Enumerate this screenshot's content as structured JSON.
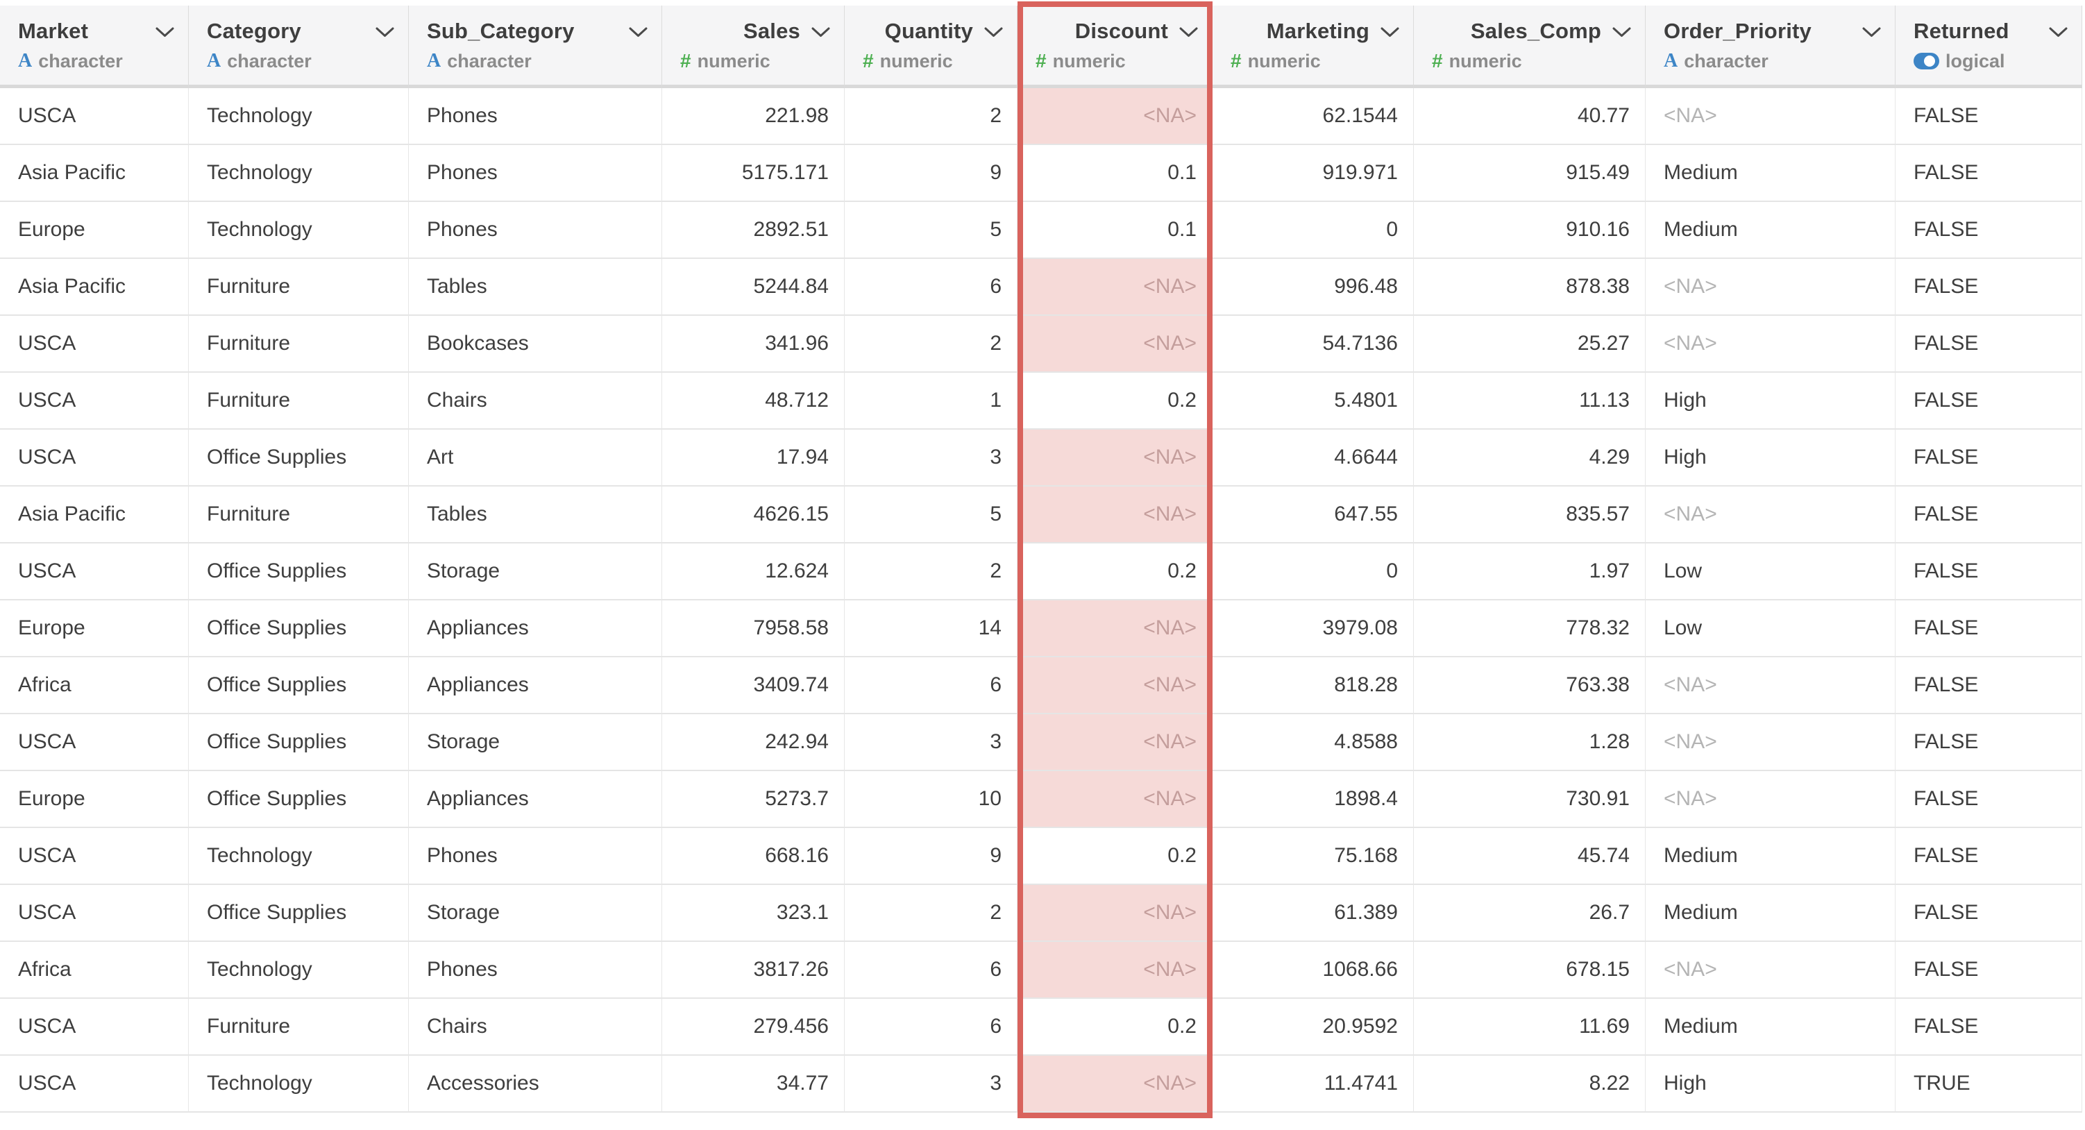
{
  "table": {
    "na_token": "<NA>",
    "type_glyphs": {
      "character": "A",
      "numeric": "#"
    },
    "columns": [
      {
        "name": "Market",
        "type": "character",
        "highlighted": false
      },
      {
        "name": "Category",
        "type": "character",
        "highlighted": false
      },
      {
        "name": "Sub_Category",
        "type": "character",
        "highlighted": false
      },
      {
        "name": "Sales",
        "type": "numeric",
        "highlighted": false
      },
      {
        "name": "Quantity",
        "type": "numeric",
        "highlighted": false
      },
      {
        "name": "Discount",
        "type": "numeric",
        "highlighted": true
      },
      {
        "name": "Marketing",
        "type": "numeric",
        "highlighted": false
      },
      {
        "name": "Sales_Comp",
        "type": "numeric",
        "highlighted": false
      },
      {
        "name": "Order_Priority",
        "type": "character",
        "highlighted": false
      },
      {
        "name": "Returned",
        "type": "logical",
        "highlighted": false
      }
    ],
    "rows": [
      [
        "USCA",
        "Technology",
        "Phones",
        "221.98",
        "2",
        "<NA>",
        "62.1544",
        "40.77",
        "<NA>",
        "FALSE"
      ],
      [
        "Asia Pacific",
        "Technology",
        "Phones",
        "5175.171",
        "9",
        "0.1",
        "919.971",
        "915.49",
        "Medium",
        "FALSE"
      ],
      [
        "Europe",
        "Technology",
        "Phones",
        "2892.51",
        "5",
        "0.1",
        "0",
        "910.16",
        "Medium",
        "FALSE"
      ],
      [
        "Asia Pacific",
        "Furniture",
        "Tables",
        "5244.84",
        "6",
        "<NA>",
        "996.48",
        "878.38",
        "<NA>",
        "FALSE"
      ],
      [
        "USCA",
        "Furniture",
        "Bookcases",
        "341.96",
        "2",
        "<NA>",
        "54.7136",
        "25.27",
        "<NA>",
        "FALSE"
      ],
      [
        "USCA",
        "Furniture",
        "Chairs",
        "48.712",
        "1",
        "0.2",
        "5.4801",
        "11.13",
        "High",
        "FALSE"
      ],
      [
        "USCA",
        "Office Supplies",
        "Art",
        "17.94",
        "3",
        "<NA>",
        "4.6644",
        "4.29",
        "High",
        "FALSE"
      ],
      [
        "Asia Pacific",
        "Furniture",
        "Tables",
        "4626.15",
        "5",
        "<NA>",
        "647.55",
        "835.57",
        "<NA>",
        "FALSE"
      ],
      [
        "USCA",
        "Office Supplies",
        "Storage",
        "12.624",
        "2",
        "0.2",
        "0",
        "1.97",
        "Low",
        "FALSE"
      ],
      [
        "Europe",
        "Office Supplies",
        "Appliances",
        "7958.58",
        "14",
        "<NA>",
        "3979.08",
        "778.32",
        "Low",
        "FALSE"
      ],
      [
        "Africa",
        "Office Supplies",
        "Appliances",
        "3409.74",
        "6",
        "<NA>",
        "818.28",
        "763.38",
        "<NA>",
        "FALSE"
      ],
      [
        "USCA",
        "Office Supplies",
        "Storage",
        "242.94",
        "3",
        "<NA>",
        "4.8588",
        "1.28",
        "<NA>",
        "FALSE"
      ],
      [
        "Europe",
        "Office Supplies",
        "Appliances",
        "5273.7",
        "10",
        "<NA>",
        "1898.4",
        "730.91",
        "<NA>",
        "FALSE"
      ],
      [
        "USCA",
        "Technology",
        "Phones",
        "668.16",
        "9",
        "0.2",
        "75.168",
        "45.74",
        "Medium",
        "FALSE"
      ],
      [
        "USCA",
        "Office Supplies",
        "Storage",
        "323.1",
        "2",
        "<NA>",
        "61.389",
        "26.7",
        "Medium",
        "FALSE"
      ],
      [
        "Africa",
        "Technology",
        "Phones",
        "3817.26",
        "6",
        "<NA>",
        "1068.66",
        "678.15",
        "<NA>",
        "FALSE"
      ],
      [
        "USCA",
        "Furniture",
        "Chairs",
        "279.456",
        "6",
        "0.2",
        "20.9592",
        "11.69",
        "Medium",
        "FALSE"
      ],
      [
        "USCA",
        "Technology",
        "Accessories",
        "34.77",
        "3",
        "<NA>",
        "11.4741",
        "8.22",
        "High",
        "TRUE"
      ]
    ]
  },
  "colors": {
    "highlight_border": "#d9635d",
    "na_cell_bg": "#f6dad8",
    "header_bg": "#f5f5f6",
    "type_blue": "#3d85c6",
    "type_green": "#4caf50"
  }
}
